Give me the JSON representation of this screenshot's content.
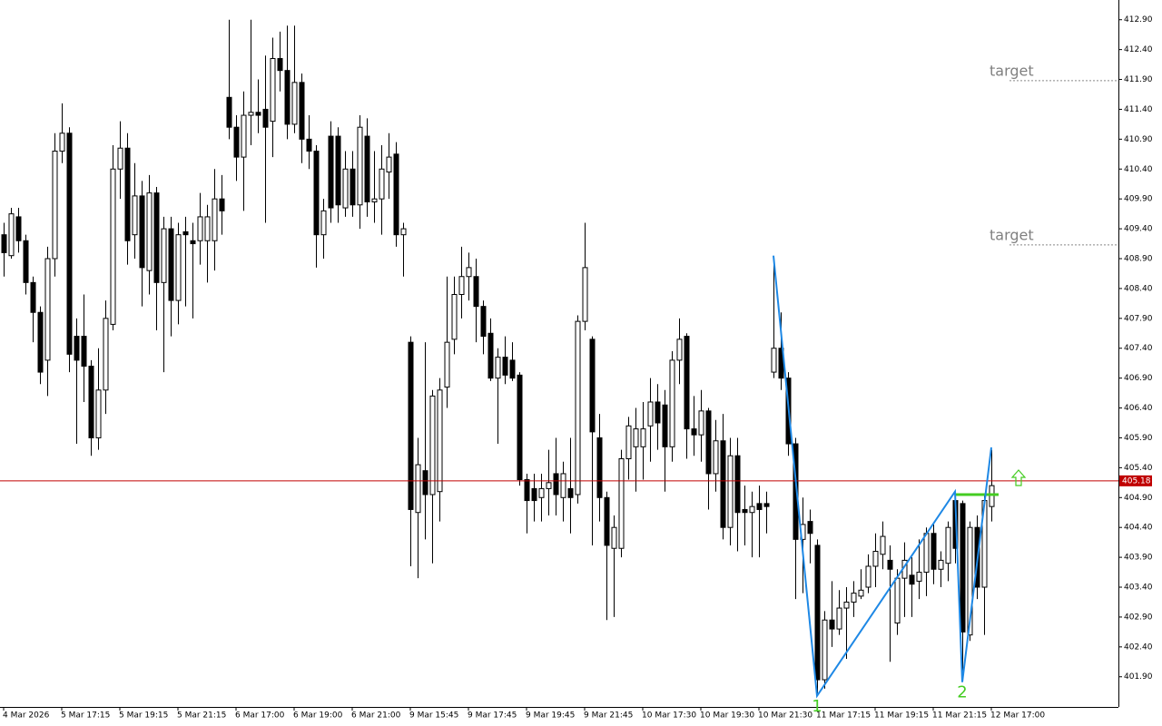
{
  "chart_data": {
    "type": "candlestick",
    "categories": [
      "4 Mar 2026",
      null,
      null,
      null,
      null,
      null,
      null,
      null,
      "5 Mar 17:15",
      null,
      null,
      null,
      null,
      null,
      null,
      null,
      "5 Mar 19:15",
      null,
      null,
      null,
      null,
      null,
      null,
      null,
      "5 Mar 21:15",
      null,
      null,
      null,
      null,
      null,
      null,
      null,
      "6 Mar 17:00",
      null,
      null,
      null,
      null,
      null,
      null,
      null,
      "6 Mar 19:00",
      null,
      null,
      null,
      null,
      null,
      null,
      null,
      "6 Mar 21:00",
      null,
      null,
      null,
      null,
      null,
      null,
      null,
      "9 Mar 15:45",
      null,
      null,
      null,
      null,
      null,
      null,
      null,
      "9 Mar 17:45",
      null,
      null,
      null,
      null,
      null,
      null,
      null,
      "9 Mar 19:45",
      null,
      null,
      null,
      null,
      null,
      null,
      null,
      "9 Mar 21:45",
      null,
      null,
      null,
      null,
      null,
      null,
      null,
      "10 Mar 17:30",
      null,
      null,
      null,
      null,
      null,
      null,
      null,
      "10 Mar 19:30",
      null,
      null,
      null,
      null,
      null,
      null,
      null,
      "10 Mar 21:30",
      null,
      null,
      null,
      null,
      null,
      null,
      null,
      "11 Mar 17:15",
      null,
      null,
      null,
      null,
      null,
      null,
      null,
      "11 Mar 19:15",
      null,
      null,
      null,
      null,
      null,
      null,
      null,
      "11 Mar 21:15",
      null,
      null,
      null,
      null,
      null,
      null,
      null,
      "12 Mar 17:00"
    ],
    "open": [
      409.3,
      408.95,
      409.6,
      409.2,
      408.5,
      408.0,
      407.2,
      408.9,
      410.7,
      411.0,
      407.6,
      407.6,
      407.1,
      405.9,
      406.7,
      407.8,
      410.4,
      410.75,
      409.3,
      409.95,
      408.7,
      410.0,
      408.5,
      409.4,
      408.2,
      409.35,
      409.2,
      409.2,
      409.2,
      409.2,
      409.9,
      411.6,
      411.1,
      410.6,
      411.3,
      411.35,
      411.4,
      411.2,
      412.25,
      412.05,
      411.15,
      411.85,
      410.9,
      410.7,
      409.3,
      410.95,
      410.95,
      409.75,
      410.4,
      409.8,
      410.95,
      409.85,
      409.9,
      410.35,
      410.65,
      409.3,
      407.5,
      404.65,
      405.35,
      404.95,
      405.0,
      406.75,
      407.55,
      408.3,
      408.6,
      408.6,
      408.1,
      407.65,
      406.9,
      407.25,
      407.2,
      406.95,
      405.2,
      405.05,
      404.9,
      405.05,
      405.3,
      404.9,
      405.05,
      404.95,
      407.85,
      407.55,
      405.9,
      404.9,
      404.05,
      404.05,
      405.55,
      405.75,
      405.75,
      406.1,
      406.5,
      406.45,
      405.75,
      407.2,
      407.6,
      406.05,
      405.95,
      406.35,
      405.3,
      405.85,
      404.4,
      405.6,
      404.7,
      404.65,
      404.8,
      404.8,
      407.0,
      407.4,
      406.9,
      405.8,
      404.2,
      404.5,
      404.1,
      401.85,
      402.85,
      402.7,
      403.05,
      403.15,
      403.25,
      403.4,
      403.75,
      403.95,
      403.85,
      402.8,
      403.55,
      403.6,
      403.5,
      403.65,
      404.3,
      403.7,
      403.8,
      404.85,
      404.8,
      402.6,
      404.4,
      403.4,
      404.75
    ],
    "high": [
      409.5,
      409.75,
      409.75,
      409.3,
      408.6,
      408.1,
      409.1,
      411.0,
      411.5,
      411.1,
      407.9,
      408.3,
      407.2,
      407.4,
      408.2,
      410.8,
      411.2,
      411.0,
      410.5,
      410.2,
      410.3,
      410.1,
      409.6,
      409.6,
      409.5,
      409.6,
      409.5,
      410.0,
      409.8,
      410.4,
      410.3,
      412.9,
      411.3,
      411.7,
      412.9,
      411.9,
      412.3,
      412.6,
      412.7,
      412.8,
      412.8,
      412.0,
      411.3,
      410.8,
      409.9,
      411.2,
      411.1,
      410.7,
      410.7,
      411.3,
      411.25,
      410.7,
      410.8,
      411.0,
      410.85,
      409.5,
      407.6,
      405.9,
      407.5,
      406.7,
      406.9,
      408.6,
      408.6,
      409.1,
      409.0,
      408.9,
      408.2,
      407.9,
      407.4,
      407.6,
      407.5,
      407.0,
      405.3,
      405.3,
      405.3,
      405.7,
      405.9,
      405.5,
      405.9,
      407.95,
      409.5,
      407.6,
      406.3,
      405.0,
      404.6,
      405.7,
      406.25,
      406.4,
      406.5,
      406.9,
      406.8,
      406.7,
      407.35,
      407.9,
      407.65,
      406.6,
      406.7,
      406.4,
      406.2,
      406.3,
      405.9,
      405.9,
      405.1,
      405.0,
      405.1,
      405.0,
      408.9,
      408.0,
      407.0,
      405.9,
      404.9,
      404.7,
      404.2,
      403.0,
      403.5,
      403.35,
      403.4,
      403.5,
      403.7,
      403.95,
      404.3,
      404.5,
      404.1,
      403.7,
      404.15,
      403.9,
      404.2,
      404.4,
      404.45,
      404.0,
      404.5,
      404.9,
      404.85,
      404.5,
      404.6,
      404.95,
      405.7
    ],
    "low": [
      408.6,
      408.9,
      409.0,
      408.3,
      407.5,
      406.8,
      406.6,
      408.6,
      410.5,
      407.0,
      405.8,
      406.5,
      405.6,
      405.7,
      406.3,
      407.7,
      409.9,
      408.8,
      408.9,
      408.1,
      408.3,
      407.7,
      407.0,
      407.6,
      407.8,
      408.1,
      407.9,
      408.8,
      408.5,
      408.7,
      409.3,
      410.9,
      410.2,
      409.7,
      410.8,
      411.0,
      409.5,
      410.6,
      411.7,
      410.9,
      411.0,
      410.5,
      410.4,
      408.75,
      408.9,
      409.5,
      409.5,
      409.6,
      409.6,
      409.4,
      409.6,
      409.5,
      409.3,
      409.9,
      409.1,
      408.6,
      403.75,
      403.55,
      404.2,
      403.8,
      404.5,
      406.4,
      407.3,
      407.9,
      408.2,
      407.5,
      407.3,
      406.85,
      405.8,
      406.8,
      406.85,
      405.1,
      404.3,
      404.5,
      404.5,
      404.6,
      404.6,
      404.5,
      404.3,
      404.8,
      407.7,
      404.1,
      404.5,
      402.85,
      402.9,
      403.9,
      405.2,
      405.0,
      405.2,
      405.5,
      405.7,
      405.0,
      405.5,
      406.8,
      405.55,
      405.6,
      405.5,
      404.7,
      405.0,
      404.2,
      404.1,
      404.0,
      404.1,
      403.9,
      403.9,
      404.3,
      406.9,
      406.7,
      405.6,
      403.2,
      403.3,
      403.8,
      401.6,
      401.7,
      402.4,
      402.6,
      402.2,
      402.9,
      403.2,
      403.3,
      403.4,
      403.7,
      402.15,
      402.6,
      402.9,
      402.9,
      403.2,
      403.25,
      403.45,
      403.4,
      403.5,
      403.8,
      401.9,
      402.5,
      403.2,
      402.6,
      404.5
    ],
    "close": [
      409.0,
      409.65,
      409.2,
      408.5,
      408.0,
      407.0,
      408.9,
      410.7,
      411.0,
      407.3,
      407.2,
      407.1,
      405.9,
      406.7,
      407.9,
      410.4,
      410.75,
      409.2,
      409.95,
      408.75,
      410.0,
      408.5,
      409.4,
      408.2,
      409.3,
      409.3,
      409.15,
      409.6,
      409.6,
      409.9,
      409.7,
      411.1,
      410.6,
      411.3,
      411.35,
      411.3,
      411.1,
      412.25,
      412.05,
      411.15,
      411.85,
      410.9,
      410.7,
      409.3,
      409.7,
      409.75,
      409.8,
      410.4,
      409.8,
      411.1,
      409.85,
      409.9,
      410.4,
      410.6,
      409.3,
      409.4,
      404.7,
      405.45,
      404.95,
      406.6,
      406.7,
      407.5,
      408.3,
      408.6,
      408.75,
      408.1,
      407.6,
      406.9,
      407.25,
      406.95,
      406.9,
      405.2,
      404.85,
      404.85,
      405.05,
      405.15,
      404.95,
      405.3,
      404.9,
      407.85,
      408.75,
      406.0,
      404.9,
      404.1,
      404.4,
      405.55,
      406.1,
      406.05,
      406.05,
      406.5,
      406.15,
      405.75,
      407.2,
      407.55,
      406.05,
      405.95,
      406.35,
      405.3,
      405.85,
      404.4,
      405.6,
      404.65,
      404.65,
      404.75,
      404.7,
      404.75,
      407.4,
      406.9,
      405.8,
      404.2,
      404.45,
      404.3,
      401.85,
      402.85,
      402.7,
      403.05,
      403.15,
      403.3,
      403.35,
      403.75,
      404.0,
      404.25,
      403.7,
      403.55,
      403.85,
      403.45,
      403.65,
      404.3,
      403.7,
      403.85,
      404.4,
      404.05,
      402.65,
      404.4,
      403.4,
      404.85,
      405.1
    ],
    "up_color": "#ffffff",
    "down_color": "#000000",
    "ylim": [
      401.41,
      413.23
    ],
    "yticks": [
      {
        "value": 412.9,
        "label": "412.90"
      },
      {
        "value": 412.4,
        "label": "412.40"
      },
      {
        "value": 411.9,
        "label": "411.90"
      },
      {
        "value": 411.4,
        "label": "411.40"
      },
      {
        "value": 410.9,
        "label": "410.90"
      },
      {
        "value": 410.4,
        "label": "410.40"
      },
      {
        "value": 409.9,
        "label": "409.90"
      },
      {
        "value": 409.4,
        "label": "409.40"
      },
      {
        "value": 408.9,
        "label": "408.90"
      },
      {
        "value": 408.4,
        "label": "408.40"
      },
      {
        "value": 407.9,
        "label": "407.90"
      },
      {
        "value": 407.4,
        "label": "407.40"
      },
      {
        "value": 406.9,
        "label": "406.90"
      },
      {
        "value": 406.4,
        "label": "406.40"
      },
      {
        "value": 405.9,
        "label": "405.90"
      },
      {
        "value": 405.4,
        "label": "405.40"
      },
      {
        "value": 404.9,
        "label": "404.90"
      },
      {
        "value": 404.4,
        "label": "404.40"
      },
      {
        "value": 403.9,
        "label": "403.90"
      },
      {
        "value": 403.4,
        "label": "403.40"
      },
      {
        "value": 402.9,
        "label": "402.90"
      },
      {
        "value": 402.4,
        "label": "402.40"
      },
      {
        "value": 401.9,
        "label": "401.90"
      }
    ],
    "current_price": 405.18,
    "current_price_color": "#c00000",
    "targets": [
      {
        "label": "target",
        "value": 411.88
      },
      {
        "label": "target",
        "value": 409.13
      }
    ],
    "pattern": {
      "color": "#1e88e5",
      "x": [
        106,
        112,
        131,
        132,
        136
      ],
      "y": [
        408.95,
        401.58,
        405.0,
        401.81,
        405.74
      ],
      "labels": [
        {
          "x": 112,
          "text": "1"
        },
        {
          "x": 132,
          "text": "2"
        }
      ]
    },
    "level": {
      "value": 404.95,
      "from": 131,
      "to": 137,
      "color": "#44cc22"
    }
  }
}
